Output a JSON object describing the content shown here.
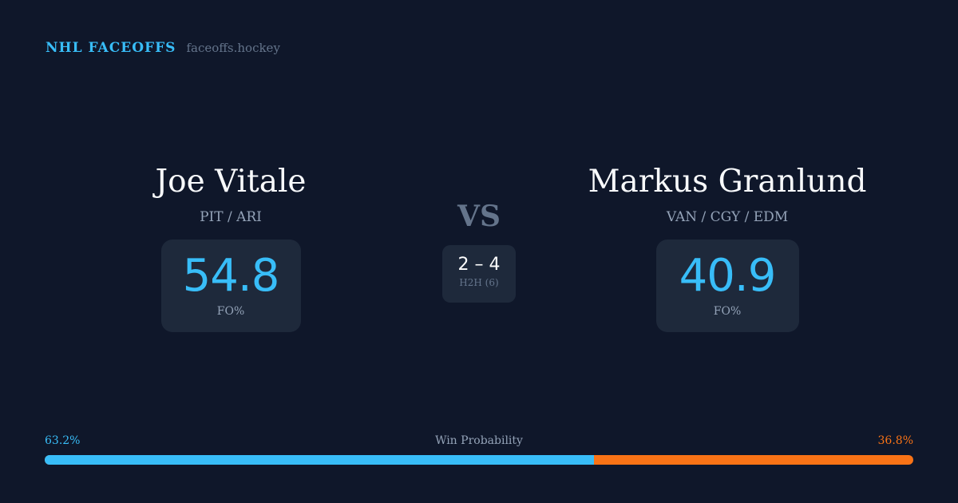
{
  "brand": {
    "title": "NHL FACEOFFS",
    "url": "faceoffs.hockey"
  },
  "left": {
    "name": "Joe Vitale",
    "teams": "PIT / ARI",
    "fo_pct": "54.8",
    "fo_label": "FO%"
  },
  "right": {
    "name": "Markus Granlund",
    "teams": "VAN / CGY / EDM",
    "fo_pct": "40.9",
    "fo_label": "FO%"
  },
  "vs": "VS",
  "h2h": {
    "score": "2 – 4",
    "label": "H2H (6)"
  },
  "win_probability": {
    "label": "Win Probability",
    "left": "63.2%",
    "right": "36.8%",
    "left_value": 63.2,
    "colors": {
      "left": "#38bdf8",
      "right": "#f97316"
    }
  }
}
